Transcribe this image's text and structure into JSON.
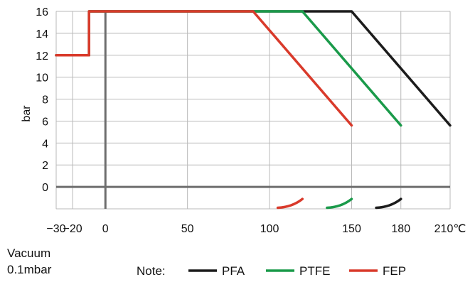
{
  "chart_data": {
    "type": "line",
    "ylabel": "bar",
    "xlabel": "",
    "x_ticks": [
      {
        "value": -30,
        "label": "−30"
      },
      {
        "value": -20,
        "label": "−20"
      },
      {
        "value": 0,
        "label": "0"
      },
      {
        "value": 50,
        "label": "50"
      },
      {
        "value": 100,
        "label": "100"
      },
      {
        "value": 150,
        "label": "150"
      },
      {
        "value": 180,
        "label": "180"
      },
      {
        "value": 210,
        "label": "210℃"
      }
    ],
    "y_ticks": [
      0,
      2,
      4,
      6,
      8,
      10,
      12,
      14,
      16
    ],
    "xlim": [
      -30,
      210
    ],
    "ylim": [
      -2,
      16
    ],
    "grid": true,
    "vacuum_label_line1": "Vacuum",
    "vacuum_label_line2": "0.1mbar",
    "legend_prefix": "Note:",
    "series": [
      {
        "name": "PFA",
        "color": "#1c1c1c",
        "x": [
          -30,
          -10,
          -10,
          150,
          210
        ],
        "y": [
          12,
          12,
          16,
          16,
          5.6
        ],
        "vacuum_arc_x": [
          165,
          180
        ],
        "vacuum_arc_y": [
          -1.9,
          -1.1
        ]
      },
      {
        "name": "PTFE",
        "color": "#1a9a4a",
        "x": [
          -30,
          -10,
          -10,
          120,
          180
        ],
        "y": [
          12,
          12,
          16,
          16,
          5.6
        ],
        "vacuum_arc_x": [
          135,
          150
        ],
        "vacuum_arc_y": [
          -1.9,
          -1.1
        ]
      },
      {
        "name": "FEP",
        "color": "#d93a2b",
        "x": [
          -30,
          -10,
          -10,
          90,
          150
        ],
        "y": [
          12,
          12,
          16,
          16,
          5.6
        ],
        "vacuum_arc_x": [
          105,
          120
        ],
        "vacuum_arc_y": [
          -1.9,
          -1.1
        ]
      }
    ]
  }
}
